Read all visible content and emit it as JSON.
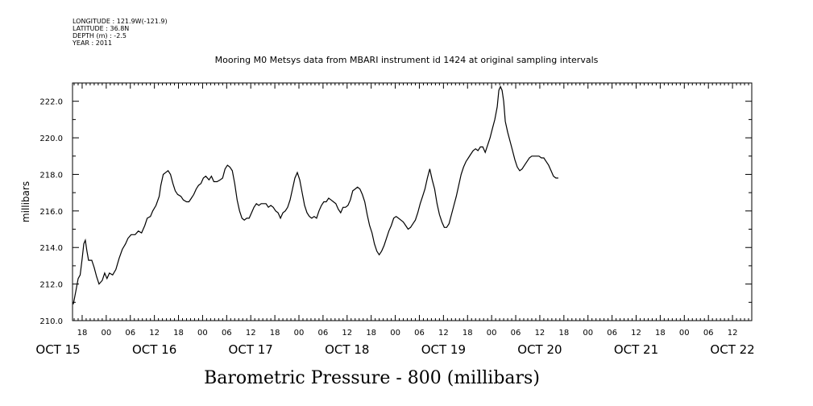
{
  "header": {
    "longitude": "LONGITUDE : 121.9W(-121.9)",
    "latitude": "LATITUDE : 36.8N",
    "depth": "DEPTH (m) : -2.5",
    "year": "YEAR : 2011"
  },
  "chart_data": {
    "type": "line",
    "title": "Mooring M0 Metsys data from MBARI instrument id 1424 at original sampling intervals",
    "xlabel": "Barometric Pressure - 800 (millibars)",
    "ylabel": "millibars",
    "ylim": [
      210.0,
      223.0
    ],
    "yticks": [
      "210.0",
      "212.0",
      "214.0",
      "216.0",
      "218.0",
      "220.0",
      "222.0"
    ],
    "hour_ticks": [
      {
        "h": 18,
        "label": "18"
      },
      {
        "h": 24,
        "label": "00"
      },
      {
        "h": 30,
        "label": "06"
      },
      {
        "h": 36,
        "label": "12"
      },
      {
        "h": 42,
        "label": "18"
      },
      {
        "h": 48,
        "label": "00"
      },
      {
        "h": 54,
        "label": "06"
      },
      {
        "h": 60,
        "label": "12"
      },
      {
        "h": 66,
        "label": "18"
      },
      {
        "h": 72,
        "label": "00"
      },
      {
        "h": 78,
        "label": "06"
      },
      {
        "h": 84,
        "label": "12"
      },
      {
        "h": 90,
        "label": "18"
      },
      {
        "h": 96,
        "label": "00"
      },
      {
        "h": 102,
        "label": "06"
      },
      {
        "h": 108,
        "label": "12"
      },
      {
        "h": 114,
        "label": "18"
      },
      {
        "h": 120,
        "label": "00"
      },
      {
        "h": 126,
        "label": "06"
      },
      {
        "h": 132,
        "label": "12"
      },
      {
        "h": 138,
        "label": "18"
      },
      {
        "h": 144,
        "label": "00"
      },
      {
        "h": 150,
        "label": "06"
      },
      {
        "h": 156,
        "label": "12"
      },
      {
        "h": 162,
        "label": "18"
      },
      {
        "h": 168,
        "label": "00"
      },
      {
        "h": 174,
        "label": "06"
      },
      {
        "h": 180,
        "label": "12"
      }
    ],
    "date_labels": [
      {
        "h": 12,
        "label": "OCT 15"
      },
      {
        "h": 36,
        "label": "OCT 16"
      },
      {
        "h": 60,
        "label": "OCT 17"
      },
      {
        "h": 84,
        "label": "OCT 18"
      },
      {
        "h": 108,
        "label": "OCT 19"
      },
      {
        "h": 132,
        "label": "OCT 20"
      },
      {
        "h": 156,
        "label": "OCT 21"
      },
      {
        "h": 180,
        "label": "OCT 22"
      }
    ],
    "xlim_hours": [
      15.6,
      184.8
    ],
    "series": [
      {
        "values": [
          [
            15.8,
            210.9
          ],
          [
            16.5,
            211.7
          ],
          [
            17.0,
            212.3
          ],
          [
            17.5,
            212.5
          ],
          [
            18.0,
            213.4
          ],
          [
            18.4,
            214.2
          ],
          [
            18.8,
            214.4
          ],
          [
            19.2,
            213.8
          ],
          [
            19.6,
            213.3
          ],
          [
            20.4,
            213.3
          ],
          [
            21.0,
            212.9
          ],
          [
            21.6,
            212.4
          ],
          [
            22.2,
            212.0
          ],
          [
            23.0,
            212.2
          ],
          [
            23.6,
            212.6
          ],
          [
            24.2,
            212.3
          ],
          [
            24.8,
            212.6
          ],
          [
            25.6,
            212.5
          ],
          [
            26.4,
            212.8
          ],
          [
            27.2,
            213.4
          ],
          [
            28.0,
            213.9
          ],
          [
            28.8,
            214.2
          ],
          [
            29.4,
            214.5
          ],
          [
            30.2,
            214.7
          ],
          [
            31.2,
            214.7
          ],
          [
            32.0,
            214.9
          ],
          [
            32.8,
            214.8
          ],
          [
            33.6,
            215.2
          ],
          [
            34.2,
            215.6
          ],
          [
            35.0,
            215.7
          ],
          [
            35.6,
            216.0
          ],
          [
            36.4,
            216.3
          ],
          [
            37.2,
            216.8
          ],
          [
            37.6,
            217.4
          ],
          [
            38.2,
            218.0
          ],
          [
            38.8,
            218.1
          ],
          [
            39.4,
            218.2
          ],
          [
            40.0,
            218.0
          ],
          [
            40.6,
            217.5
          ],
          [
            41.2,
            217.1
          ],
          [
            41.8,
            216.9
          ],
          [
            42.6,
            216.8
          ],
          [
            43.2,
            216.6
          ],
          [
            44.0,
            216.5
          ],
          [
            44.6,
            216.5
          ],
          [
            45.2,
            216.7
          ],
          [
            45.8,
            216.9
          ],
          [
            46.4,
            217.2
          ],
          [
            47.0,
            217.4
          ],
          [
            47.6,
            217.5
          ],
          [
            48.2,
            217.8
          ],
          [
            48.8,
            217.9
          ],
          [
            49.6,
            217.7
          ],
          [
            50.2,
            217.9
          ],
          [
            50.8,
            217.6
          ],
          [
            51.6,
            217.6
          ],
          [
            52.4,
            217.7
          ],
          [
            53.0,
            217.8
          ],
          [
            53.6,
            218.3
          ],
          [
            54.2,
            218.5
          ],
          [
            54.8,
            218.4
          ],
          [
            55.4,
            218.2
          ],
          [
            56.0,
            217.5
          ],
          [
            56.6,
            216.6
          ],
          [
            57.2,
            216.0
          ],
          [
            57.8,
            215.6
          ],
          [
            58.4,
            215.5
          ],
          [
            59.0,
            215.6
          ],
          [
            59.6,
            215.6
          ],
          [
            60.2,
            215.9
          ],
          [
            60.8,
            216.2
          ],
          [
            61.4,
            216.4
          ],
          [
            62.0,
            216.3
          ],
          [
            62.6,
            216.4
          ],
          [
            63.2,
            216.4
          ],
          [
            63.8,
            216.4
          ],
          [
            64.4,
            216.2
          ],
          [
            65.0,
            216.3
          ],
          [
            65.6,
            216.2
          ],
          [
            66.2,
            216.0
          ],
          [
            66.8,
            215.9
          ],
          [
            67.4,
            215.6
          ],
          [
            68.0,
            215.9
          ],
          [
            68.6,
            216.0
          ],
          [
            69.2,
            216.2
          ],
          [
            69.8,
            216.6
          ],
          [
            70.4,
            217.2
          ],
          [
            71.0,
            217.8
          ],
          [
            71.6,
            218.1
          ],
          [
            72.2,
            217.7
          ],
          [
            72.8,
            217.0
          ],
          [
            73.4,
            216.3
          ],
          [
            74.0,
            215.9
          ],
          [
            74.6,
            215.7
          ],
          [
            75.2,
            215.6
          ],
          [
            75.8,
            215.7
          ],
          [
            76.4,
            215.6
          ],
          [
            77.0,
            216.0
          ],
          [
            77.6,
            216.3
          ],
          [
            78.2,
            216.5
          ],
          [
            78.8,
            216.5
          ],
          [
            79.4,
            216.7
          ],
          [
            80.0,
            216.6
          ],
          [
            80.6,
            216.5
          ],
          [
            81.2,
            216.4
          ],
          [
            81.8,
            216.1
          ],
          [
            82.4,
            215.9
          ],
          [
            83.0,
            216.2
          ],
          [
            83.6,
            216.2
          ],
          [
            84.2,
            216.3
          ],
          [
            84.8,
            216.6
          ],
          [
            85.4,
            217.1
          ],
          [
            86.0,
            217.2
          ],
          [
            86.6,
            217.3
          ],
          [
            87.2,
            217.2
          ],
          [
            87.8,
            216.9
          ],
          [
            88.4,
            216.5
          ],
          [
            89.0,
            215.8
          ],
          [
            89.6,
            215.2
          ],
          [
            90.2,
            214.8
          ],
          [
            90.8,
            214.2
          ],
          [
            91.4,
            213.8
          ],
          [
            92.0,
            213.6
          ],
          [
            92.6,
            213.8
          ],
          [
            93.2,
            214.1
          ],
          [
            93.8,
            214.5
          ],
          [
            94.4,
            214.9
          ],
          [
            95.0,
            215.2
          ],
          [
            95.6,
            215.6
          ],
          [
            96.2,
            215.7
          ],
          [
            96.8,
            215.6
          ],
          [
            97.4,
            215.5
          ],
          [
            98.0,
            215.4
          ],
          [
            98.6,
            215.2
          ],
          [
            99.2,
            215.0
          ],
          [
            99.8,
            215.1
          ],
          [
            100.4,
            215.3
          ],
          [
            101.0,
            215.5
          ],
          [
            101.6,
            215.9
          ],
          [
            102.2,
            216.4
          ],
          [
            102.8,
            216.8
          ],
          [
            103.4,
            217.2
          ],
          [
            104.0,
            217.8
          ],
          [
            104.6,
            218.3
          ],
          [
            105.2,
            217.7
          ],
          [
            105.8,
            217.2
          ],
          [
            106.4,
            216.4
          ],
          [
            107.0,
            215.8
          ],
          [
            107.6,
            215.4
          ],
          [
            108.2,
            215.1
          ],
          [
            108.8,
            215.1
          ],
          [
            109.4,
            215.3
          ],
          [
            110.0,
            215.8
          ],
          [
            110.6,
            216.3
          ],
          [
            111.2,
            216.8
          ],
          [
            111.8,
            217.4
          ],
          [
            112.4,
            218.0
          ],
          [
            113.0,
            218.4
          ],
          [
            113.6,
            218.7
          ],
          [
            114.2,
            218.9
          ],
          [
            114.8,
            219.1
          ],
          [
            115.4,
            219.3
          ],
          [
            116.0,
            219.4
          ],
          [
            116.6,
            219.3
          ],
          [
            117.2,
            219.5
          ],
          [
            117.8,
            219.5
          ],
          [
            118.4,
            219.2
          ],
          [
            119.0,
            219.6
          ],
          [
            119.6,
            220.0
          ],
          [
            120.2,
            220.5
          ],
          [
            120.8,
            221.0
          ],
          [
            121.4,
            221.7
          ],
          [
            121.8,
            222.6
          ],
          [
            122.2,
            222.8
          ],
          [
            122.6,
            222.6
          ],
          [
            123.0,
            222.0
          ],
          [
            123.4,
            220.9
          ],
          [
            124.0,
            220.3
          ],
          [
            124.6,
            219.8
          ],
          [
            125.2,
            219.3
          ],
          [
            125.8,
            218.8
          ],
          [
            126.4,
            218.4
          ],
          [
            127.0,
            218.2
          ],
          [
            127.6,
            218.3
          ],
          [
            128.2,
            218.5
          ],
          [
            128.8,
            218.7
          ],
          [
            129.4,
            218.9
          ],
          [
            130.0,
            219.0
          ],
          [
            130.6,
            219.0
          ],
          [
            131.2,
            219.0
          ],
          [
            131.8,
            219.0
          ],
          [
            132.4,
            218.9
          ],
          [
            133.0,
            218.9
          ],
          [
            133.6,
            218.7
          ],
          [
            134.2,
            218.5
          ],
          [
            134.8,
            218.2
          ],
          [
            135.4,
            217.9
          ],
          [
            136.0,
            217.8
          ],
          [
            136.6,
            217.8
          ]
        ]
      }
    ]
  }
}
